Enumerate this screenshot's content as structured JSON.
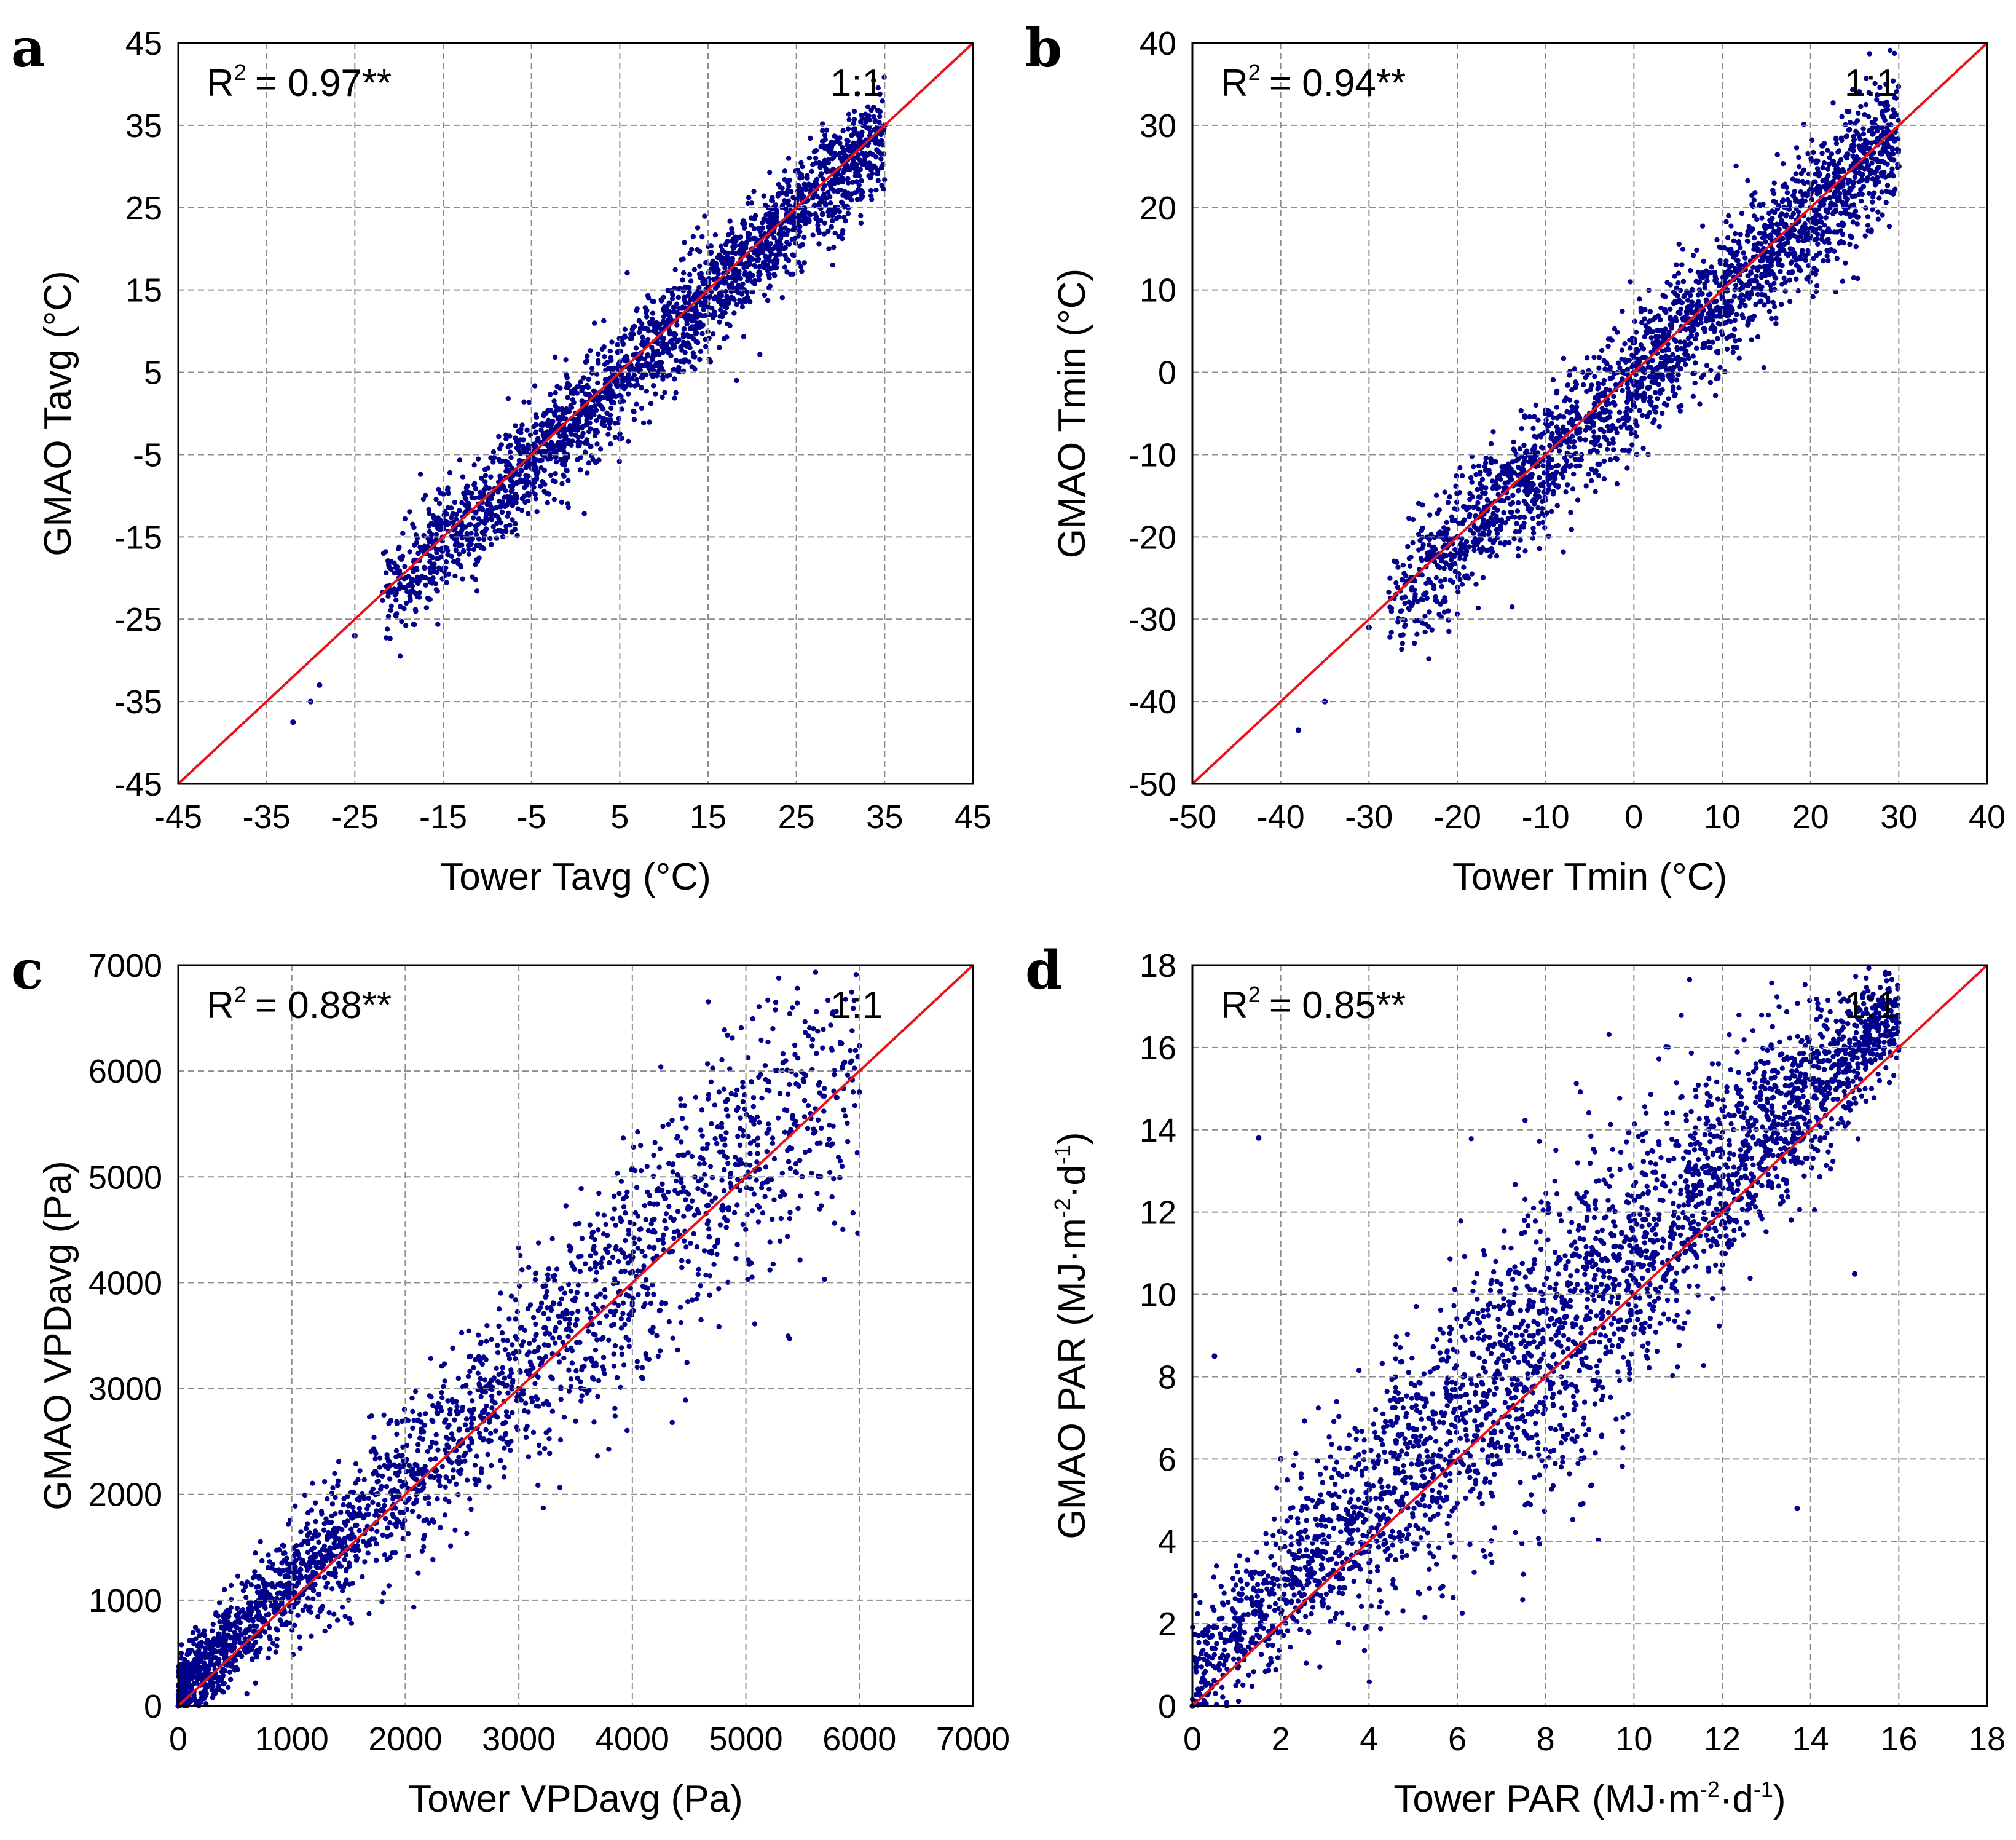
{
  "colors": {
    "points": "#00008B",
    "line": "#E8141B",
    "grid": "#8c8c8c",
    "frame": "#000000"
  },
  "chart_data": [
    {
      "panel": "a",
      "type": "scatter",
      "xlabel": "Tower Tavg (°C)",
      "ylabel": "GMAO Tavg (°C)",
      "xlim": [
        -45,
        45
      ],
      "ylim": [
        -45,
        45
      ],
      "xticks": [
        "-45",
        "-35",
        "-25",
        "-15",
        "-5",
        "5",
        "15",
        "25",
        "35",
        "45"
      ],
      "yticks": [
        "-45",
        "-35",
        "-25",
        "-15",
        "-5",
        "5",
        "15",
        "25",
        "35",
        "45"
      ],
      "r2_text": "= 0.97**",
      "r2_label": "R",
      "r2_sup": "2",
      "reference_line": {
        "label": "1:1",
        "from": [
          -45,
          -45
        ],
        "to": [
          45,
          45
        ]
      },
      "grid": true,
      "cloud": {
        "x_range": [
          -32,
          35
        ],
        "spread": 3.2
      },
      "sample_points": [
        [
          -32,
          -37.5
        ],
        [
          -30,
          -35
        ],
        [
          -29,
          -33
        ],
        [
          -25,
          -27
        ],
        [
          -20,
          -20
        ],
        [
          -15,
          -14
        ],
        [
          -10,
          -11
        ],
        [
          -5,
          -6
        ],
        [
          0,
          0
        ],
        [
          5,
          4
        ],
        [
          10,
          11
        ],
        [
          15,
          14
        ],
        [
          20,
          20
        ],
        [
          25,
          26
        ],
        [
          30,
          31
        ],
        [
          35,
          35
        ]
      ]
    },
    {
      "panel": "b",
      "type": "scatter",
      "xlabel": "Tower Tmin (°C)",
      "ylabel": "GMAO Tmin (°C)",
      "xlim": [
        -50,
        40
      ],
      "ylim": [
        -50,
        40
      ],
      "xticks": [
        "-50",
        "-40",
        "-30",
        "-20",
        "-10",
        "0",
        "10",
        "20",
        "30",
        "40"
      ],
      "yticks": [
        "-50",
        "-40",
        "-30",
        "-20",
        "-10",
        "0",
        "10",
        "20",
        "30",
        "40"
      ],
      "r2_text": "= 0.94**",
      "r2_label": "R",
      "r2_sup": "2",
      "reference_line": {
        "label": "1:1",
        "from": [
          -50,
          -50
        ],
        "to": [
          40,
          40
        ]
      },
      "grid": true,
      "cloud": {
        "x_range": [
          -38,
          30
        ],
        "spread": 4.0
      },
      "sample_points": [
        [
          -38,
          -43.5
        ],
        [
          -35,
          -40
        ],
        [
          -30,
          -31
        ],
        [
          -25,
          -25
        ],
        [
          -20,
          -20
        ],
        [
          -10,
          -10
        ],
        [
          0,
          0
        ],
        [
          10,
          9
        ],
        [
          20,
          20
        ],
        [
          25,
          26
        ],
        [
          28,
          28
        ],
        [
          30,
          25
        ]
      ]
    },
    {
      "panel": "c",
      "type": "scatter",
      "xlabel": "Tower VPDavg (Pa)",
      "ylabel": "GMAO VPDavg (Pa)",
      "xlim": [
        0,
        7000
      ],
      "ylim": [
        0,
        7000
      ],
      "xticks": [
        "0",
        "1000",
        "2000",
        "3000",
        "4000",
        "5000",
        "6000",
        "7000"
      ],
      "yticks": [
        "0",
        "1000",
        "2000",
        "3000",
        "4000",
        "5000",
        "6000",
        "7000"
      ],
      "r2_text": "= 0.88**",
      "r2_label": "R",
      "r2_sup": "2",
      "reference_line": {
        "label": "1:1",
        "from": [
          0,
          0
        ],
        "to": [
          7000,
          7000
        ]
      },
      "grid": true,
      "cloud": {
        "x_range": [
          0,
          6000
        ],
        "spread": 450
      },
      "sample_points": [
        [
          0,
          0
        ],
        [
          500,
          600
        ],
        [
          1000,
          1100
        ],
        [
          1500,
          1600
        ],
        [
          2000,
          2100
        ],
        [
          2500,
          2500
        ],
        [
          3000,
          3000
        ],
        [
          3500,
          3600
        ],
        [
          4000,
          4100
        ],
        [
          4500,
          4700
        ],
        [
          5000,
          5000
        ],
        [
          5200,
          5900
        ],
        [
          5800,
          5750
        ],
        [
          6000,
          5800
        ]
      ]
    },
    {
      "panel": "d",
      "type": "scatter",
      "xlabel_parts": [
        "Tower PAR (MJ·m",
        "-2",
        "·d",
        "-1",
        ")"
      ],
      "ylabel_parts": [
        "GMAO PAR (MJ·m",
        "-2",
        "·d",
        "-1",
        ")"
      ],
      "xlim": [
        0,
        18
      ],
      "ylim": [
        0,
        18
      ],
      "xticks": [
        "0",
        "2",
        "4",
        "6",
        "8",
        "10",
        "12",
        "14",
        "16",
        "18"
      ],
      "yticks": [
        "0",
        "2",
        "4",
        "6",
        "8",
        "10",
        "12",
        "14",
        "16",
        "18"
      ],
      "r2_text": "= 0.85**",
      "r2_label": "R",
      "r2_sup": "2",
      "reference_line": {
        "label": "1:1",
        "from": [
          0,
          0
        ],
        "to": [
          18,
          18
        ]
      },
      "grid": true,
      "cloud": {
        "x_range": [
          0,
          16
        ],
        "spread": 2.0
      },
      "sample_points": [
        [
          0,
          0
        ],
        [
          0.5,
          8.5
        ],
        [
          1.5,
          13.8
        ],
        [
          2,
          6
        ],
        [
          4,
          5
        ],
        [
          6,
          7
        ],
        [
          8,
          8
        ],
        [
          10,
          10
        ],
        [
          12,
          11
        ],
        [
          13.7,
          4.8
        ],
        [
          14,
          14
        ],
        [
          15,
          10.5
        ],
        [
          16,
          16
        ]
      ]
    }
  ]
}
